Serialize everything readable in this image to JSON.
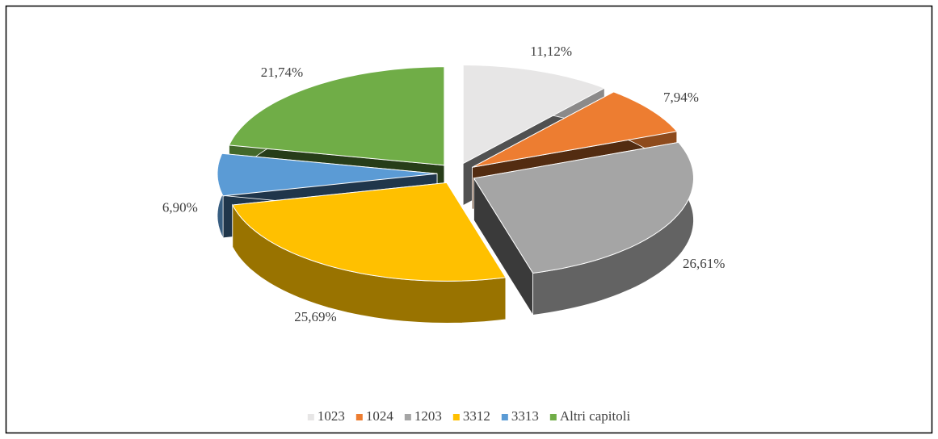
{
  "chart_data": {
    "type": "pie",
    "categories": [
      "1023",
      "1024",
      "1203",
      "3312",
      "3313",
      "Altri capitoli"
    ],
    "values": [
      11.12,
      7.94,
      26.61,
      25.69,
      6.9,
      21.74
    ],
    "value_labels": [
      "11,12%",
      "7,94%",
      "26,61%",
      "25,69%",
      "6,90%",
      "21,74%"
    ],
    "colors": [
      "#e7e6e6",
      "#ed7d31",
      "#a5a5a5",
      "#ffc000",
      "#5b9bd5",
      "#70ad47"
    ],
    "legend": "bottom"
  }
}
